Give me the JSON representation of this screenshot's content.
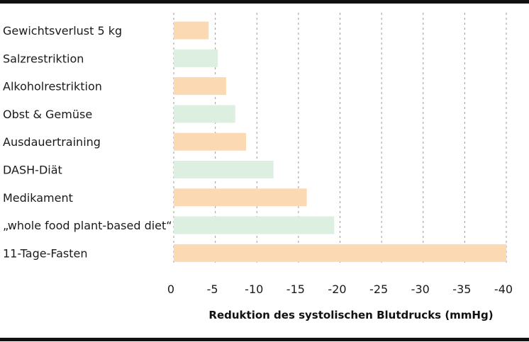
{
  "chart_data": {
    "type": "bar",
    "orientation": "horizontal",
    "categories": [
      "Gewichtsverlust 5 kg",
      "Salzrestriktion",
      "Alkoholrestriktion",
      "Obst & Gemüse",
      "Ausdauertraining",
      "DASH-Diät",
      "Medikament",
      "„whole food plant-based diet“",
      "11-Tage-Fasten"
    ],
    "values": [
      -4.2,
      -5.3,
      -6.3,
      -7.4,
      -8.7,
      -12.0,
      -16.0,
      -19.3,
      -40.0
    ],
    "bar_colors": [
      "#fbd9b3",
      "#dcefe1",
      "#fbd9b3",
      "#dcefe1",
      "#fbd9b3",
      "#dcefe1",
      "#fbd9b3",
      "#dcefe1",
      "#fbd9b3"
    ],
    "xticks": [
      0,
      -5,
      -10,
      -15,
      -20,
      -25,
      -30,
      -35,
      -40
    ],
    "xtick_labels": [
      "0",
      "-5",
      "-10",
      "-15",
      "-20",
      "-25",
      "-30",
      "-35",
      "-40"
    ],
    "xlim": [
      0,
      -40
    ],
    "xlabel": "Reduktion des systolischen Blutdrucks (mmHg)",
    "ylabel": "",
    "title": "",
    "grid": "vertical dashed",
    "legend": "none"
  }
}
